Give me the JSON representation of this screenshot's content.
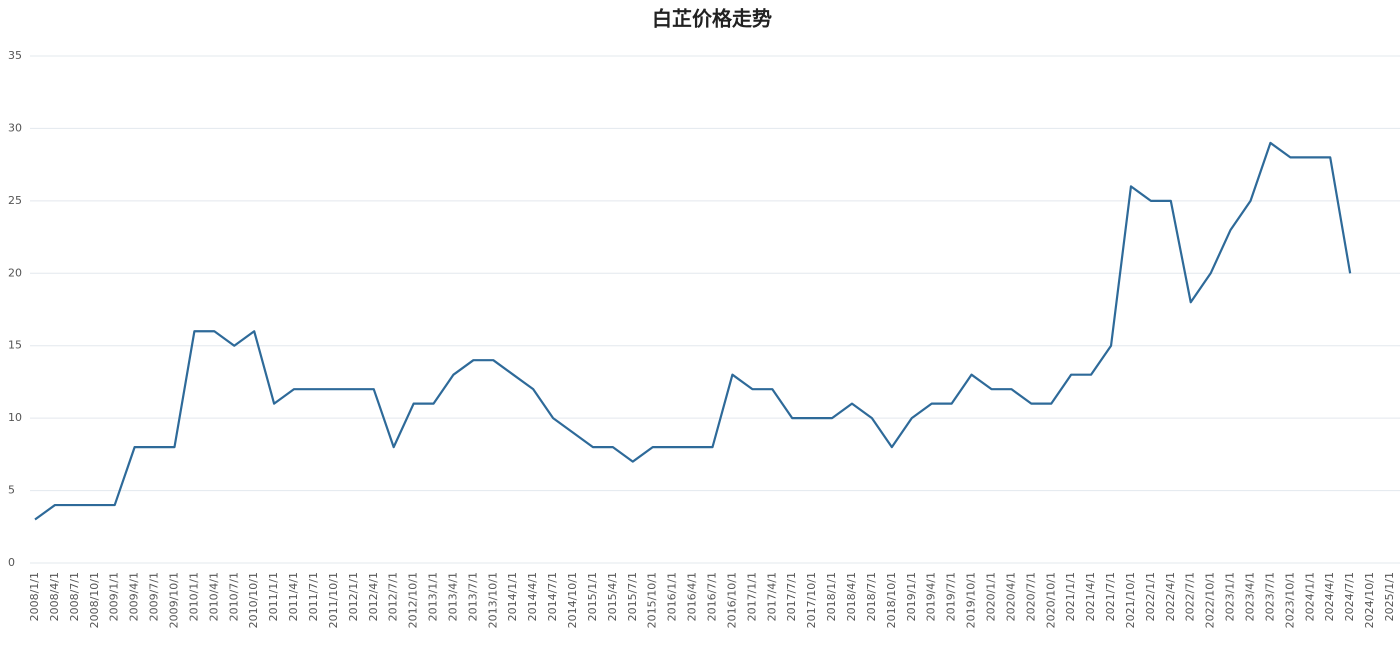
{
  "chart_data": {
    "type": "line",
    "title": "白芷价格走势",
    "categories": [
      "2008/1/1",
      "2008/4/1",
      "2008/7/1",
      "2008/10/1",
      "2009/1/1",
      "2009/4/1",
      "2009/7/1",
      "2009/10/1",
      "2010/1/1",
      "2010/4/1",
      "2010/7/1",
      "2010/10/1",
      "2011/1/1",
      "2011/4/1",
      "2011/7/1",
      "2011/10/1",
      "2012/1/1",
      "2012/4/1",
      "2012/7/1",
      "2012/10/1",
      "2013/1/1",
      "2013/4/1",
      "2013/7/1",
      "2013/10/1",
      "2014/1/1",
      "2014/4/1",
      "2014/7/1",
      "2014/10/1",
      "2015/1/1",
      "2015/4/1",
      "2015/7/1",
      "2015/10/1",
      "2016/1/1",
      "2016/4/1",
      "2016/7/1",
      "2016/10/1",
      "2017/1/1",
      "2017/4/1",
      "2017/7/1",
      "2017/10/1",
      "2018/1/1",
      "2018/4/1",
      "2018/7/1",
      "2018/10/1",
      "2019/1/1",
      "2019/4/1",
      "2019/7/1",
      "2019/10/1",
      "2020/1/1",
      "2020/4/1",
      "2020/7/1",
      "2020/10/1",
      "2021/1/1",
      "2021/4/1",
      "2021/7/1",
      "2021/10/1",
      "2022/1/1",
      "2022/4/1",
      "2022/7/1",
      "2022/10/1",
      "2023/1/1",
      "2023/4/1",
      "2023/7/1",
      "2023/10/1",
      "2024/1/1",
      "2024/4/1",
      "2024/7/1",
      "2024/10/1",
      "2025/1/1"
    ],
    "series": [
      {
        "color": "#2e6a99",
        "values": [
          3,
          4,
          4,
          4,
          4,
          8,
          8,
          8,
          16,
          16,
          15,
          16,
          11,
          12,
          12,
          12,
          12,
          12,
          8,
          11,
          11,
          13,
          14,
          14,
          13,
          12,
          10,
          9,
          8,
          8,
          7,
          8,
          8,
          8,
          8,
          13,
          12,
          12,
          10,
          10,
          10,
          11,
          10,
          8,
          10,
          11,
          11,
          13,
          12,
          12,
          11,
          11,
          13,
          13,
          15,
          26,
          25,
          25,
          18,
          20,
          23,
          25,
          29,
          28,
          28,
          28,
          20,
          null,
          null
        ]
      }
    ],
    "ylim": [
      0,
      35
    ],
    "yticks": [
      0,
      5,
      10,
      15,
      20,
      25,
      30,
      35
    ],
    "grid": true
  }
}
